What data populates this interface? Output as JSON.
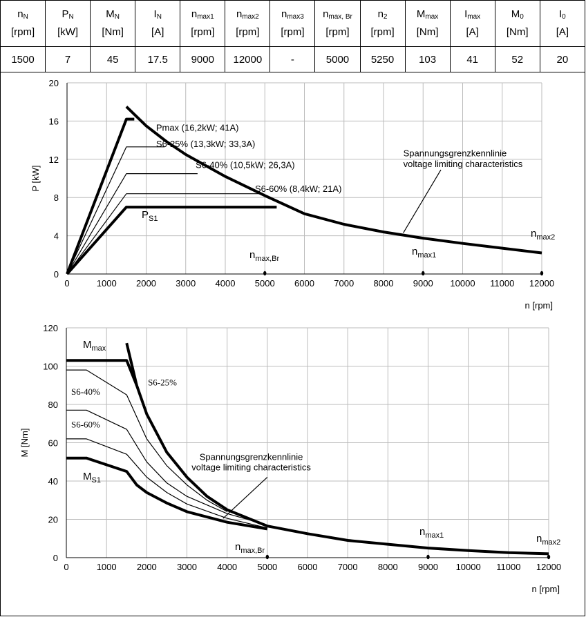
{
  "table": {
    "headers": [
      {
        "sym": "n",
        "sub": "N",
        "unit": "[rpm]"
      },
      {
        "sym": "P",
        "sub": "N",
        "unit": "[kW]"
      },
      {
        "sym": "M",
        "sub": "N",
        "unit": "[Nm]"
      },
      {
        "sym": "I",
        "sub": "N",
        "unit": "[A]"
      },
      {
        "sym": "n",
        "sub": "max1",
        "unit": "[rpm]"
      },
      {
        "sym": "n",
        "sub": "max2",
        "unit": "[rpm]"
      },
      {
        "sym": "n",
        "sub": "max3",
        "unit": "[rpm]"
      },
      {
        "sym": "n",
        "sub": "max, Br",
        "unit": "[rpm]"
      },
      {
        "sym": "n",
        "sub": "2",
        "unit": "[rpm]"
      },
      {
        "sym": "M",
        "sub": "max",
        "unit": "[Nm]"
      },
      {
        "sym": "I",
        "sub": "max",
        "unit": "[A]"
      },
      {
        "sym": "M",
        "sub": "0",
        "unit": "[Nm]"
      },
      {
        "sym": "I",
        "sub": "0",
        "unit": "[A]"
      }
    ],
    "values": [
      "1500",
      "7",
      "45",
      "17.5",
      "9000",
      "12000",
      "-",
      "5000",
      "5250",
      "103",
      "41",
      "52",
      "20"
    ]
  },
  "chart_data": [
    {
      "type": "line",
      "xlabel": "n [rpm]",
      "ylabel": "P [kW]",
      "xlim": [
        0,
        12000
      ],
      "ylim": [
        0,
        20
      ],
      "xticks": [
        0,
        1000,
        2000,
        3000,
        4000,
        5000,
        6000,
        7000,
        8000,
        9000,
        10000,
        11000,
        12000
      ],
      "yticks": [
        0,
        4,
        8,
        12,
        16,
        20
      ],
      "grid": true,
      "series": [
        {
          "name": "voltage limiting",
          "bold": true,
          "points": [
            [
              1500,
              17.5
            ],
            [
              2000,
              15.5
            ],
            [
              2500,
              13.9
            ],
            [
              3000,
              12.5
            ],
            [
              4000,
              10.2
            ],
            [
              5000,
              8.2
            ],
            [
              6000,
              6.3
            ],
            [
              7000,
              5.2
            ],
            [
              8000,
              4.4
            ],
            [
              9000,
              3.75
            ],
            [
              10000,
              3.2
            ],
            [
              11000,
              2.7
            ],
            [
              12000,
              2.2
            ]
          ]
        },
        {
          "name": "Pmax",
          "bold": true,
          "points": [
            [
              0,
              0
            ],
            [
              1500,
              16.2
            ],
            [
              1700,
              16.2
            ]
          ]
        },
        {
          "name": "S6-25%",
          "bold": false,
          "points": [
            [
              0,
              0
            ],
            [
              1500,
              13.3
            ],
            [
              2470,
              13.3
            ]
          ]
        },
        {
          "name": "S6-40%",
          "bold": false,
          "points": [
            [
              0,
              0
            ],
            [
              1500,
              10.5
            ],
            [
              3300,
              10.5
            ]
          ]
        },
        {
          "name": "S6-60%",
          "bold": false,
          "points": [
            [
              0,
              0
            ],
            [
              1500,
              8.4
            ],
            [
              4950,
              8.4
            ]
          ]
        },
        {
          "name": "PS1",
          "bold": true,
          "points": [
            [
              0,
              0
            ],
            [
              1500,
              7.0
            ],
            [
              5300,
              7.0
            ]
          ]
        }
      ],
      "annotations": [
        {
          "text": "Pmax (16,2kW; 41A)",
          "x": 2250,
          "y": 15.0
        },
        {
          "text": "S6-25% (13,3kW; 33,3A)",
          "x": 2250,
          "y": 13.3
        },
        {
          "text": "S6-40% (10,5kW; 26,3A)",
          "x": 3250,
          "y": 11.1
        },
        {
          "text": "S6-60% (8,4kW; 21A)",
          "x": 4750,
          "y": 8.6
        },
        {
          "text": "Spannungsgrenzkennlinie",
          "x": 8500,
          "y": 12.3
        },
        {
          "text": "voltage limiting characteristics",
          "x": 8500,
          "y": 11.2
        }
      ],
      "label_ps1": {
        "main": "P",
        "sub": "S1"
      },
      "label_nmaxbr": {
        "main": "n",
        "sub": "max,Br"
      },
      "label_nmax1": {
        "main": "n",
        "sub": "max1"
      },
      "label_nmax2": {
        "main": "n",
        "sub": "max2"
      },
      "markers": [
        5000,
        9000,
        12000
      ]
    },
    {
      "type": "line",
      "xlabel": "n [rpm]",
      "ylabel": "M [Nm]",
      "xlim": [
        0,
        12000
      ],
      "ylim": [
        0,
        120
      ],
      "xticks": [
        0,
        1000,
        2000,
        3000,
        4000,
        5000,
        6000,
        7000,
        8000,
        9000,
        10000,
        11000,
        12000
      ],
      "yticks": [
        0,
        20,
        40,
        60,
        80,
        100,
        120
      ],
      "grid": true,
      "series": [
        {
          "name": "voltage limiting",
          "bold": true,
          "points": [
            [
              1500,
              112
            ],
            [
              1750,
              90
            ],
            [
              2000,
              75
            ],
            [
              2500,
              55
            ],
            [
              3000,
              42
            ],
            [
              3500,
              32
            ],
            [
              4000,
              25
            ],
            [
              5000,
              16.5
            ],
            [
              6000,
              12.5
            ],
            [
              7000,
              9
            ],
            [
              8000,
              7
            ],
            [
              9000,
              5
            ],
            [
              10000,
              3.7
            ],
            [
              11000,
              2.6
            ],
            [
              12000,
              2
            ]
          ]
        },
        {
          "name": "Mmax",
          "bold": true,
          "points": [
            [
              0,
              103
            ],
            [
              1500,
              103
            ],
            [
              1750,
              90
            ]
          ]
        },
        {
          "name": "S6-25%",
          "bold": false,
          "points": [
            [
              0,
              98
            ],
            [
              500,
              98
            ],
            [
              1500,
              85
            ],
            [
              2000,
              62
            ],
            [
              2500,
              48
            ],
            [
              3000,
              38
            ],
            [
              3500,
              30
            ],
            [
              4000,
              24
            ]
          ]
        },
        {
          "name": "S6-40%",
          "bold": false,
          "points": [
            [
              0,
              77
            ],
            [
              500,
              77
            ],
            [
              1500,
              67
            ],
            [
              2000,
              50
            ],
            [
              2500,
              39
            ],
            [
              3000,
              32
            ],
            [
              4000,
              23
            ],
            [
              5000,
              17
            ]
          ]
        },
        {
          "name": "S6-60%",
          "bold": false,
          "points": [
            [
              0,
              62
            ],
            [
              500,
              62
            ],
            [
              1500,
              54
            ],
            [
              2000,
              42
            ],
            [
              2500,
              34
            ],
            [
              3000,
              28
            ],
            [
              4000,
              20.5
            ],
            [
              5000,
              15.5
            ]
          ]
        },
        {
          "name": "MS1",
          "bold": true,
          "points": [
            [
              0,
              52
            ],
            [
              500,
              52
            ],
            [
              1500,
              45
            ],
            [
              1750,
              38
            ],
            [
              2000,
              34
            ],
            [
              2500,
              28.5
            ],
            [
              3000,
              24
            ],
            [
              4000,
              18.5
            ],
            [
              5000,
              15
            ]
          ]
        }
      ],
      "annotations": [
        {
          "text": "S6-25%",
          "x": 2030,
          "y": 90,
          "serif": true
        },
        {
          "text": "S6-40%",
          "x": 120,
          "y": 85,
          "serif": true
        },
        {
          "text": "S6-60%",
          "x": 120,
          "y": 68,
          "serif": true
        },
        {
          "text": "Spannungsgrenzkennlinie",
          "x": 4600,
          "y": 51,
          "center": true
        },
        {
          "text": "voltage limiting characteristics",
          "x": 4600,
          "y": 45.5,
          "center": true
        }
      ],
      "label_mmax": {
        "main": "M",
        "sub": "max"
      },
      "label_ms1": {
        "main": "M",
        "sub": "S1"
      },
      "label_nmaxbr": {
        "main": "n",
        "sub": "max,Br"
      },
      "label_nmax1": {
        "main": "n",
        "sub": "max1"
      },
      "label_nmax2": {
        "main": "n",
        "sub": "max2"
      },
      "markers": [
        5000,
        9000,
        12000
      ]
    }
  ]
}
